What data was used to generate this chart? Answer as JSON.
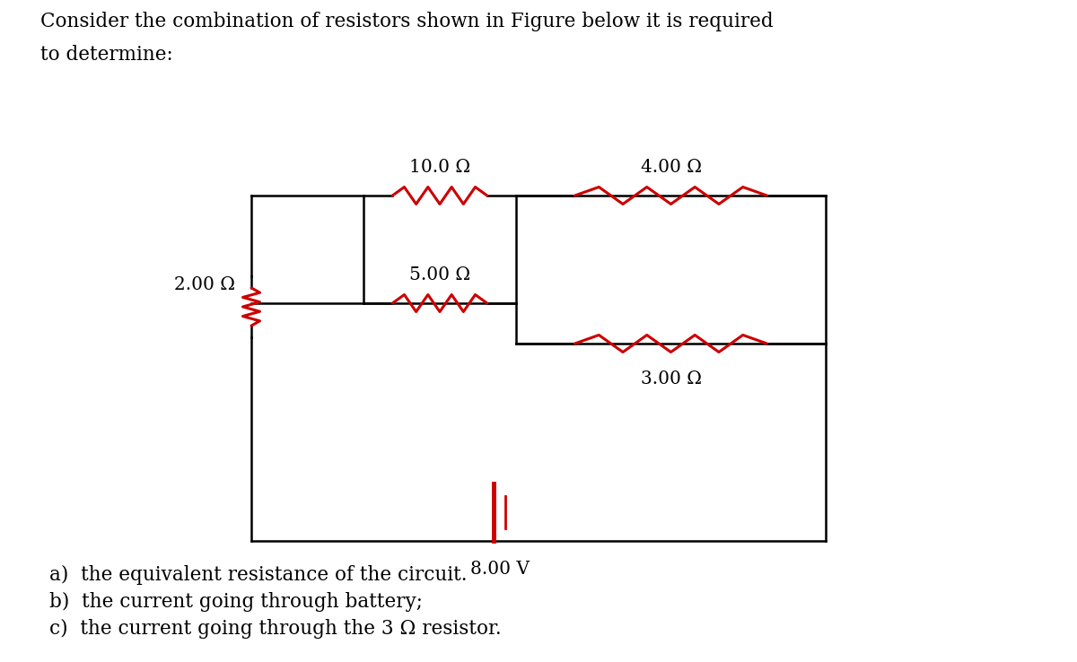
{
  "title_line1": "Consider the combination of resistors shown in Figure below it is required",
  "title_line2": "to determine:",
  "resistors": {
    "R10": "10.0 Ω",
    "R4": "4.00 Ω",
    "R5": "5.00 Ω",
    "R2": "2.00 Ω",
    "R3": "3.00 Ω",
    "V": "8.00 V"
  },
  "questions": [
    "a)  the equivalent resistance of the circuit.",
    "b)  the current going through battery;",
    "c)  the current going through the 3 Ω resistor."
  ],
  "wire_color": "#000000",
  "resistor_color": "#cc0000",
  "bg_color": "#ffffff",
  "title_fontsize": 15.5,
  "label_fontsize": 14.5,
  "question_fontsize": 15.5,
  "wire_lw": 1.8,
  "resistor_lw": 2.2,
  "n_peaks": 4,
  "amplitude": 0.095
}
